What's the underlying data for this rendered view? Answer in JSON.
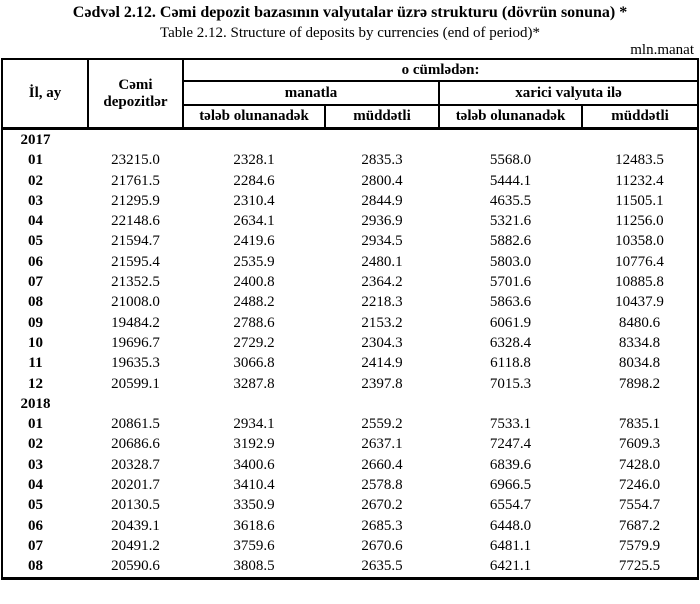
{
  "title": "Cədvəl  2.12. Cəmi depozit bazasının valyutalar üzrə strukturu (dövrün sonuna) *",
  "subtitle": "Table  2.12. Structure of deposits by currencies (end of period)*",
  "unit": "mln.manat",
  "colors": {
    "text": "#000000",
    "background": "#ffffff",
    "border": "#000000"
  },
  "table": {
    "header": {
      "year_month": "İl, ay",
      "total": "Cəmi depozitlər",
      "including": "o cümlədən:",
      "manat": "manatla",
      "foreign": "xarici valyuta ilə",
      "demand": "tələb olunanadək",
      "term": "müddətli"
    },
    "rows": [
      {
        "type": "year",
        "label": "2017"
      },
      {
        "type": "data",
        "month": "01",
        "values": [
          "23215.0",
          "2328.1",
          "2835.3",
          "5568.0",
          "12483.5"
        ]
      },
      {
        "type": "data",
        "month": "02",
        "values": [
          "21761.5",
          "2284.6",
          "2800.4",
          "5444.1",
          "11232.4"
        ]
      },
      {
        "type": "data",
        "month": "03",
        "values": [
          "21295.9",
          "2310.4",
          "2844.9",
          "4635.5",
          "11505.1"
        ]
      },
      {
        "type": "data",
        "month": "04",
        "values": [
          "22148.6",
          "2634.1",
          "2936.9",
          "5321.6",
          "11256.0"
        ]
      },
      {
        "type": "data",
        "month": "05",
        "values": [
          "21594.7",
          "2419.6",
          "2934.5",
          "5882.6",
          "10358.0"
        ]
      },
      {
        "type": "data",
        "month": "06",
        "values": [
          "21595.4",
          "2535.9",
          "2480.1",
          "5803.0",
          "10776.4"
        ]
      },
      {
        "type": "data",
        "month": "07",
        "values": [
          "21352.5",
          "2400.8",
          "2364.2",
          "5701.6",
          "10885.8"
        ]
      },
      {
        "type": "data",
        "month": "08",
        "values": [
          "21008.0",
          "2488.2",
          "2218.3",
          "5863.6",
          "10437.9"
        ]
      },
      {
        "type": "data",
        "month": "09",
        "values": [
          "19484.2",
          "2788.6",
          "2153.2",
          "6061.9",
          "8480.6"
        ]
      },
      {
        "type": "data",
        "month": "10",
        "values": [
          "19696.7",
          "2729.2",
          "2304.3",
          "6328.4",
          "8334.8"
        ]
      },
      {
        "type": "data",
        "month": "11",
        "values": [
          "19635.3",
          "3066.8",
          "2414.9",
          "6118.8",
          "8034.8"
        ]
      },
      {
        "type": "data",
        "month": "12",
        "values": [
          "20599.1",
          "3287.8",
          "2397.8",
          "7015.3",
          "7898.2"
        ]
      },
      {
        "type": "year",
        "label": "2018"
      },
      {
        "type": "data",
        "month": "01",
        "values": [
          "20861.5",
          "2934.1",
          "2559.2",
          "7533.1",
          "7835.1"
        ]
      },
      {
        "type": "data",
        "month": "02",
        "values": [
          "20686.6",
          "3192.9",
          "2637.1",
          "7247.4",
          "7609.3"
        ]
      },
      {
        "type": "data",
        "month": "03",
        "values": [
          "20328.7",
          "3400.6",
          "2660.4",
          "6839.6",
          "7428.0"
        ]
      },
      {
        "type": "data",
        "month": "04",
        "values": [
          "20201.7",
          "3410.4",
          "2578.8",
          "6966.5",
          "7246.0"
        ]
      },
      {
        "type": "data",
        "month": "05",
        "values": [
          "20130.5",
          "3350.9",
          "2670.2",
          "6554.7",
          "7554.7"
        ]
      },
      {
        "type": "data",
        "month": "06",
        "values": [
          "20439.1",
          "3618.6",
          "2685.3",
          "6448.0",
          "7687.2"
        ]
      },
      {
        "type": "data",
        "month": "07",
        "values": [
          "20491.2",
          "3759.6",
          "2670.6",
          "6481.1",
          "7579.9"
        ]
      },
      {
        "type": "data",
        "month": "08",
        "values": [
          "20590.6",
          "3808.5",
          "2635.5",
          "6421.1",
          "7725.5"
        ]
      }
    ]
  }
}
